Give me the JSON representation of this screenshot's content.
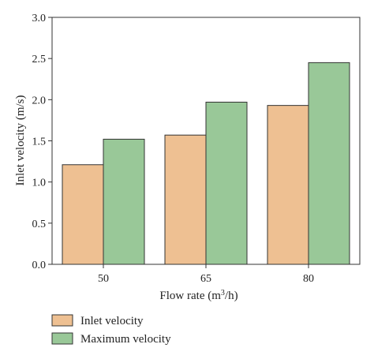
{
  "chart_data": {
    "type": "bar",
    "categories": [
      "50",
      "65",
      "80"
    ],
    "series": [
      {
        "name": "Inlet velocity",
        "values": [
          1.21,
          1.57,
          1.93
        ],
        "color": "#EEC092"
      },
      {
        "name": "Maximum velocity",
        "values": [
          1.52,
          1.97,
          2.45
        ],
        "color": "#99C898"
      }
    ],
    "xlabel": "Flow rate (m³/h)",
    "ylabel": "Inlet velocity (m/s)",
    "ylim": [
      0,
      3.0
    ],
    "yticks": [
      "0.0",
      "0.5",
      "1.0",
      "1.5",
      "2.0",
      "2.5",
      "3.0"
    ],
    "grid": false,
    "legend_position": "bottom-left",
    "bar_stroke_color": "#333333"
  }
}
